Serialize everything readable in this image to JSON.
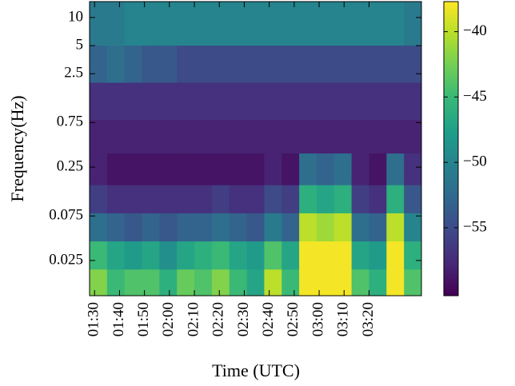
{
  "chart_data": {
    "type": "heatmap",
    "colormap": "viridis",
    "xlabel": "Time (UTC)",
    "ylabel": "Frequency(Hz)",
    "yscale": "log",
    "xlim": [
      "01:28",
      "03:41"
    ],
    "xticks": [
      "01:30",
      "01:40",
      "01:50",
      "02:00",
      "02:10",
      "02:20",
      "02:30",
      "02:40",
      "02:50",
      "03:00",
      "03:10",
      "03:20"
    ],
    "ylim": [
      0.0105,
      14.8
    ],
    "yticks": [
      10,
      5,
      2.5,
      0.75,
      0.25,
      0.075,
      0.025
    ],
    "clim": [
      -60.2,
      -37.7
    ],
    "cticks": [
      {
        "value": -40,
        "label": "−40"
      },
      {
        "value": -45,
        "label": "−45"
      },
      {
        "value": -50,
        "label": "−50"
      },
      {
        "value": -55,
        "label": "−55"
      }
    ],
    "xbins": [
      "01:28",
      "01:35",
      "01:42",
      "01:49",
      "01:56",
      "02:03",
      "02:10",
      "02:17",
      "02:24",
      "02:31",
      "02:38",
      "02:45",
      "02:52",
      "02:59",
      "03:06",
      "03:13",
      "03:20",
      "03:27",
      "03:34",
      "03:41"
    ],
    "ybins": [
      14.8,
      5,
      2,
      0.8,
      0.35,
      0.16,
      0.08,
      0.04,
      0.02,
      0.0105
    ],
    "values": [
      [
        -51,
        -51,
        -50,
        -50,
        -50,
        -50,
        -50,
        -50,
        -50,
        -50,
        -50,
        -50,
        -50,
        -50,
        -50,
        -50,
        -50,
        -50,
        -51
      ],
      [
        -53,
        -52,
        -53,
        -54,
        -54,
        -55,
        -55,
        -55,
        -55,
        -55,
        -55,
        -55,
        -55,
        -55,
        -55,
        -55,
        -55,
        -55,
        -55
      ],
      [
        -57,
        -57,
        -57,
        -57,
        -57,
        -57,
        -57,
        -57,
        -57,
        -57,
        -57,
        -57,
        -57,
        -57,
        -57,
        -57,
        -57,
        -57,
        -57
      ],
      [
        -58,
        -58,
        -58,
        -58,
        -58,
        -58,
        -58,
        -58,
        -58,
        -58,
        -58,
        -58,
        -58,
        -58,
        -58,
        -58,
        -58,
        -58,
        -58
      ],
      [
        -58,
        -59,
        -59,
        -59,
        -59,
        -59,
        -59,
        -59,
        -59,
        -59,
        -58,
        -59,
        -52,
        -53,
        -52,
        -58,
        -59,
        -52,
        -57
      ],
      [
        -56,
        -57,
        -57,
        -57,
        -57,
        -57,
        -57,
        -56,
        -57,
        -57,
        -55,
        -56,
        -46,
        -47,
        -46,
        -56,
        -57,
        -46,
        -54
      ],
      [
        -52,
        -53,
        -54,
        -53,
        -54,
        -53,
        -53,
        -52,
        -53,
        -54,
        -51,
        -53,
        -40,
        -41,
        -40,
        -52,
        -53,
        -40,
        -50
      ],
      [
        -45,
        -47,
        -48,
        -47,
        -49,
        -47,
        -46,
        -45,
        -47,
        -48,
        -44,
        -47,
        -38,
        -38,
        -38,
        -47,
        -48,
        -38,
        -46
      ],
      [
        -42,
        -45,
        -44,
        -44,
        -46,
        -43,
        -44,
        -42,
        -45,
        -47,
        -40,
        -45,
        -38,
        -38,
        -38,
        -44,
        -46,
        -38,
        -44
      ]
    ]
  }
}
